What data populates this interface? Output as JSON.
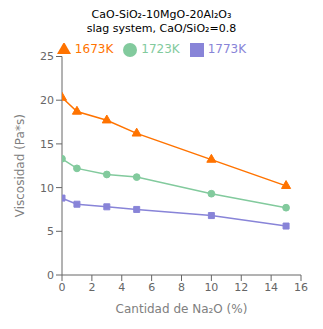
{
  "chart_data": {
    "type": "line",
    "title": "CaO-SiO₂-10MgO-20Al₂O₃",
    "subtitle": "slag system, CaO/SiO₂=0.8",
    "x_label": "Cantidad de Na₂O (%)",
    "y_label": "Viscosidad (Pa*s)",
    "x": [
      0,
      1,
      3,
      5,
      10,
      15
    ],
    "series": [
      {
        "name": "1773K",
        "marker": "square",
        "color": "#8884d8",
        "values": [
          8.8,
          8.1,
          7.8,
          7.5,
          6.8,
          5.6
        ]
      },
      {
        "name": "1723K",
        "marker": "circle",
        "color": "#82ca9d",
        "values": [
          13.3,
          12.2,
          11.5,
          11.2,
          9.3,
          7.7
        ]
      },
      {
        "name": "1673K",
        "marker": "triangle",
        "color": "#ff7300",
        "values": [
          20.3,
          18.7,
          17.7,
          16.2,
          13.2,
          10.2
        ]
      }
    ],
    "xlim": [
      0,
      16
    ],
    "ylim": [
      0,
      25
    ],
    "xticks": [
      0,
      2,
      4,
      6,
      8,
      10,
      12,
      14,
      16
    ],
    "yticks": [
      0,
      5,
      10,
      15,
      20,
      25
    ],
    "grid": false,
    "legend": "top"
  }
}
